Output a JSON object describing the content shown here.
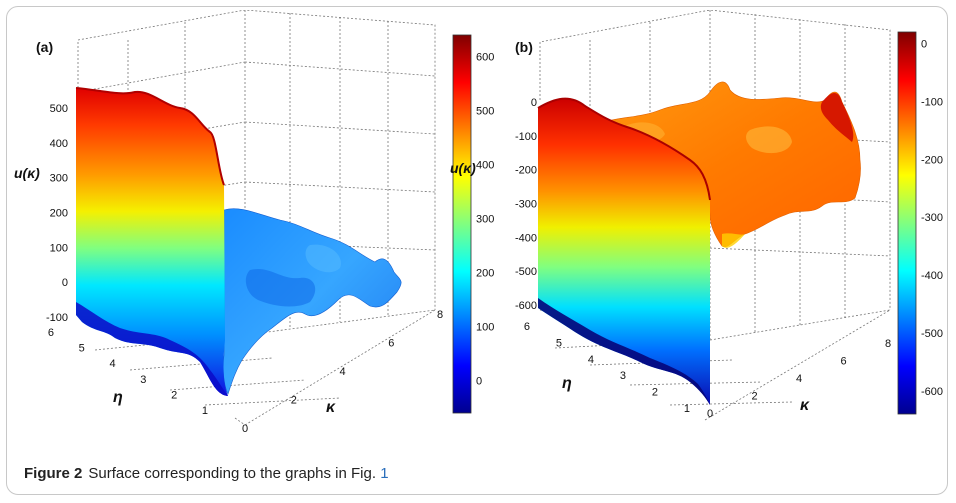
{
  "caption": {
    "label": "Figure 2",
    "text": "Surface corresponding to the graphs in Fig.",
    "ref": "1"
  },
  "colormap": [
    "#00008f",
    "#0000ff",
    "#0080ff",
    "#00ffff",
    "#80ff80",
    "#ffff00",
    "#ff8000",
    "#ff0000",
    "#800000"
  ],
  "chart_data": [
    {
      "panel_label": "(a)",
      "type": "surface",
      "xlabel": "κ",
      "ylabel": "η",
      "zlabel": "u(κ)",
      "colorbar_label": "u(κ)",
      "xlim": [
        0,
        8
      ],
      "ylim": [
        1,
        6
      ],
      "zlim": [
        -100,
        500
      ],
      "x_ticks": [
        0,
        2,
        4,
        6,
        8
      ],
      "y_ticks": [
        1,
        2,
        3,
        4,
        5,
        6
      ],
      "z_ticks": [
        -100,
        0,
        100,
        200,
        300,
        400,
        500
      ],
      "colorbar_range": [
        -60,
        640
      ],
      "colorbar_ticks": [
        0,
        100,
        200,
        300,
        400,
        500,
        600
      ],
      "front_edge_profile": [
        -100,
        -90,
        -60,
        -85,
        -50,
        -65,
        -80,
        -100
      ],
      "top_edge_profile": [
        520,
        510,
        505,
        495,
        485,
        470,
        450,
        420
      ],
      "plateau_level": 130
    },
    {
      "panel_label": "(b)",
      "type": "surface",
      "xlabel": "κ",
      "ylabel": "η",
      "zlabel": "",
      "colorbar_label": "",
      "xlim": [
        0,
        8
      ],
      "ylim": [
        1,
        6
      ],
      "zlim": [
        -600,
        0
      ],
      "x_ticks": [
        0,
        2,
        4,
        6,
        8
      ],
      "y_ticks": [
        1,
        2,
        3,
        4,
        5,
        6
      ],
      "z_ticks": [
        -600,
        -500,
        -400,
        -300,
        -200,
        -100,
        0
      ],
      "colorbar_range": [
        -640,
        20
      ],
      "colorbar_ticks": [
        -600,
        -500,
        -400,
        -300,
        -200,
        -100,
        0
      ],
      "colorbar_tick_labels": [
        "-600",
        "-500",
        "-400",
        "-300",
        "-200",
        "-100",
        "0"
      ],
      "front_edge_profile": [
        -620,
        -640,
        -650,
        -640,
        -660,
        -650
      ],
      "plateau_level": -60
    }
  ]
}
